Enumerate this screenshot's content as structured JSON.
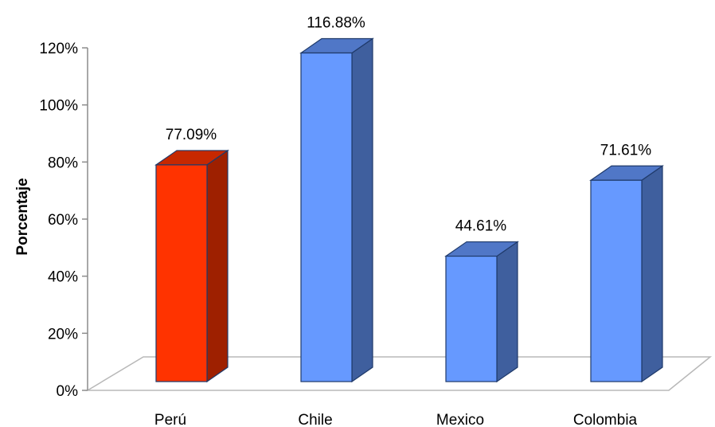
{
  "chart_data": {
    "type": "bar",
    "title": "",
    "xlabel": "",
    "ylabel": "Porcentaje",
    "ylim": [
      0,
      120
    ],
    "yticks": [
      0,
      20,
      40,
      60,
      80,
      100,
      120
    ],
    "ytick_labels": [
      "0%",
      "20%",
      "40%",
      "60%",
      "80%",
      "100%",
      "120%"
    ],
    "categories": [
      "Perú",
      "Chile",
      "Mexico",
      "Colombia"
    ],
    "values": [
      77.09,
      116.88,
      44.61,
      71.61
    ],
    "data_labels": [
      "77.09%",
      "116.88%",
      "44.61%",
      "71.61%"
    ],
    "bar_colors": [
      "#FF3300",
      "#6699FF",
      "#6699FF",
      "#6699FF"
    ],
    "style": "3d-column",
    "grid": false,
    "legend": "none"
  }
}
